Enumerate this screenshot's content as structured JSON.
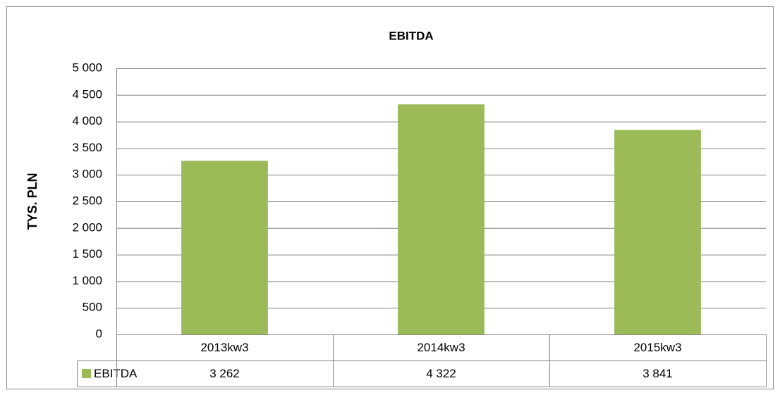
{
  "chart_data": {
    "type": "bar",
    "title": "EBITDA",
    "y_label": "TYS. PLN",
    "categories": [
      "2013kw3",
      "2014kw3",
      "2015kw3"
    ],
    "series": [
      {
        "name": "EBITDA",
        "color": "#9bbb59",
        "values": [
          3262,
          4322,
          3841
        ],
        "value_labels": [
          "3 262",
          "4 322",
          "3 841"
        ]
      }
    ],
    "ylim": [
      0,
      5000
    ],
    "yticks": [
      0,
      500,
      {
        "value": 1000,
        "label": "1 000"
      },
      {
        "value": 1500,
        "label": "1 500"
      },
      {
        "value": 2000,
        "label": "2 000"
      },
      {
        "value": 2500,
        "label": "2 500"
      },
      {
        "value": 3000,
        "label": "3 000"
      },
      {
        "value": 3500,
        "label": "3 500"
      },
      {
        "value": 4000,
        "label": "4 000"
      },
      {
        "value": 4500,
        "label": "4 500"
      },
      {
        "value": 5000,
        "label": "5 000"
      }
    ],
    "grid": true,
    "data_table": true
  }
}
